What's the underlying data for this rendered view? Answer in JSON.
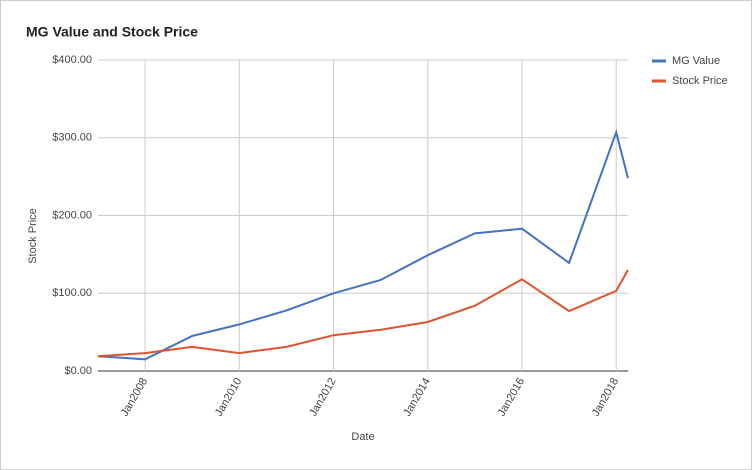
{
  "chart_data": {
    "type": "line",
    "title": "MG Value and Stock Price",
    "x_label": "Date",
    "y_label": "Stock Price",
    "x": [
      "2007-01",
      "2008-01",
      "2009-01",
      "2010-01",
      "2011-01",
      "2012-01",
      "2013-01",
      "2014-01",
      "2015-01",
      "2016-01",
      "2017-01",
      "2018-01",
      "2018-04"
    ],
    "series": [
      {
        "name": "MG Value",
        "color": "#4472c4",
        "values": [
          19,
          15,
          45,
          60,
          78,
          100,
          117,
          149,
          177,
          183,
          139,
          307,
          248
        ]
      },
      {
        "name": "Stock Price",
        "color": "#e0532f",
        "values": [
          19,
          23,
          31,
          23,
          31,
          46,
          53,
          63,
          84,
          118,
          77,
          103,
          130
        ]
      }
    ],
    "xlim": [
      "2007-01",
      "2018-04"
    ],
    "xticks": [
      {
        "value": "2008-01",
        "label": "Jan2008"
      },
      {
        "value": "2010-01",
        "label": "Jan2010"
      },
      {
        "value": "2012-01",
        "label": "Jan2012"
      },
      {
        "value": "2014-01",
        "label": "Jan2014"
      },
      {
        "value": "2016-01",
        "label": "Jan2016"
      },
      {
        "value": "2018-01",
        "label": "Jan2018"
      }
    ],
    "ylim": [
      0,
      400
    ],
    "yticks": [
      {
        "value": 0,
        "label": "$0.00"
      },
      {
        "value": 100,
        "label": "$100.00"
      },
      {
        "value": 200,
        "label": "$200.00"
      },
      {
        "value": 300,
        "label": "$300.00"
      },
      {
        "value": 400,
        "label": "$400.00"
      }
    ],
    "grid": true,
    "legend": "right"
  }
}
